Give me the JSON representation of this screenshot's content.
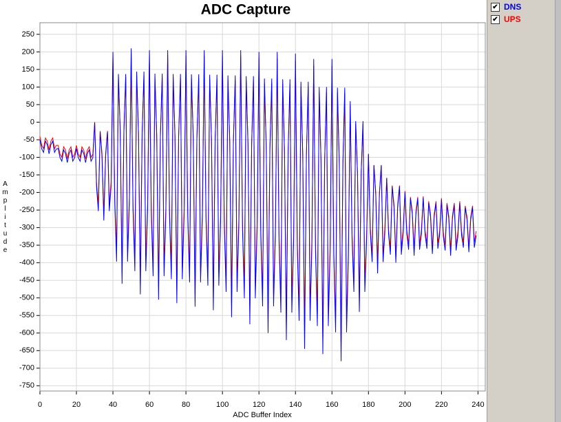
{
  "chart_data": {
    "type": "line",
    "title": "ADC Capture",
    "x_label": "ADC Buffer Index",
    "y_label": "Amplitude",
    "xlim": [
      0,
      244
    ],
    "ylim": [
      -765,
      283
    ],
    "xticks": [
      0,
      20,
      40,
      60,
      80,
      100,
      120,
      140,
      160,
      180,
      200,
      220,
      240
    ],
    "yticks": [
      -750,
      -700,
      -650,
      -600,
      -550,
      -500,
      -450,
      -400,
      -350,
      -300,
      -250,
      -200,
      -150,
      -100,
      -50,
      0,
      50,
      100,
      150,
      200,
      250
    ],
    "grid": true,
    "x": [
      0,
      1,
      2,
      3,
      4,
      5,
      6,
      7,
      8,
      9,
      10,
      11,
      12,
      13,
      14,
      15,
      16,
      17,
      18,
      19,
      20,
      21,
      22,
      23,
      24,
      25,
      26,
      27,
      28,
      29,
      30,
      31,
      32,
      33,
      34,
      35,
      36,
      37,
      38,
      39,
      40,
      41,
      42,
      43,
      44,
      45,
      46,
      47,
      48,
      49,
      50,
      51,
      52,
      53,
      54,
      55,
      56,
      57,
      58,
      59,
      60,
      61,
      62,
      63,
      64,
      65,
      66,
      67,
      68,
      69,
      70,
      71,
      72,
      73,
      74,
      75,
      76,
      77,
      78,
      79,
      80,
      81,
      82,
      83,
      84,
      85,
      86,
      87,
      88,
      89,
      90,
      91,
      92,
      93,
      94,
      95,
      96,
      97,
      98,
      99,
      100,
      101,
      102,
      103,
      104,
      105,
      106,
      107,
      108,
      109,
      110,
      111,
      112,
      113,
      114,
      115,
      116,
      117,
      118,
      119,
      120,
      121,
      122,
      123,
      124,
      125,
      126,
      127,
      128,
      129,
      130,
      131,
      132,
      133,
      134,
      135,
      136,
      137,
      138,
      139,
      140,
      141,
      142,
      143,
      144,
      145,
      146,
      147,
      148,
      149,
      150,
      151,
      152,
      153,
      154,
      155,
      156,
      157,
      158,
      159,
      160,
      161,
      162,
      163,
      164,
      165,
      166,
      167,
      168,
      169,
      170,
      171,
      172,
      173,
      174,
      175,
      176,
      177,
      178,
      179,
      180,
      181,
      182,
      183,
      184,
      185,
      186,
      187,
      188,
      189,
      190,
      191,
      192,
      193,
      194,
      195,
      196,
      197,
      198,
      199,
      200,
      201,
      202,
      203,
      204,
      205,
      206,
      207,
      208,
      209,
      210,
      211,
      212,
      213,
      214,
      215,
      216,
      217,
      218,
      219,
      220,
      221,
      222,
      223,
      224,
      225,
      226,
      227,
      228,
      229,
      230,
      231,
      232,
      233,
      234,
      235,
      236,
      237,
      238,
      239
    ],
    "series": [
      {
        "name": "DNS",
        "color": "#0000ff",
        "values": [
          -50,
          -76,
          -86,
          -54,
          -64,
          -90,
          -64,
          -54,
          -86,
          -76,
          -75,
          -101,
          -111,
          -79,
          -89,
          -115,
          -89,
          -79,
          -111,
          -101,
          -75,
          -101,
          -111,
          -79,
          -89,
          -115,
          -89,
          -79,
          -111,
          -101,
          0,
          -183,
          -253,
          -27,
          -97,
          -280,
          -97,
          -27,
          -253,
          -183,
          200,
          -232,
          -397,
          137,
          -28,
          -460,
          -28,
          137,
          -397,
          -232,
          210,
          -249,
          -424,
          144,
          -32,
          -490,
          -32,
          144,
          -424,
          -249,
          205,
          -260,
          -438,
          138,
          -40,
          -505,
          -40,
          138,
          -438,
          -260,
          205,
          -267,
          -447,
          137,
          -43,
          -515,
          -43,
          137,
          -447,
          -267,
          205,
          -273,
          -456,
          136,
          -47,
          -525,
          -47,
          136,
          -456,
          -273,
          205,
          -280,
          -465,
          135,
          -50,
          -535,
          -50,
          135,
          -465,
          -280,
          205,
          -293,
          -483,
          133,
          -57,
          -555,
          -57,
          133,
          -483,
          -293,
          205,
          -306,
          -501,
          131,
          -64,
          -575,
          -64,
          131,
          -501,
          -306,
          200,
          -324,
          -524,
          124,
          -76,
          -600,
          -76,
          124,
          -524,
          -324,
          200,
          -337,
          -542,
          122,
          -83,
          -620,
          -83,
          122,
          -542,
          -337,
          195,
          -355,
          -565,
          115,
          -95,
          -645,
          -95,
          115,
          -565,
          -355,
          180,
          -370,
          -580,
          100,
          -110,
          -660,
          -110,
          100,
          -580,
          -370,
          180,
          -383,
          -598,
          98,
          -117,
          -680,
          -117,
          98,
          -598,
          -383,
          60,
          -333,
          -483,
          3,
          -147,
          -540,
          -147,
          3,
          -483,
          -333,
          -90,
          -313,
          -398,
          -122,
          -207,
          -430,
          -207,
          -122,
          -398,
          -313,
          -160,
          -317,
          -377,
          -183,
          -243,
          -400,
          -243,
          -183,
          -377,
          -317,
          -200,
          -318,
          -363,
          -217,
          -262,
          -380,
          -262,
          -217,
          -363,
          -318,
          -215,
          -320,
          -360,
          -230,
          -270,
          -375,
          -270,
          -230,
          -360,
          -320,
          -220,
          -325,
          -365,
          -235,
          -275,
          -380,
          -275,
          -235,
          -365,
          -325,
          -230,
          -322,
          -357,
          -243,
          -278,
          -370,
          -278,
          -243,
          -357,
          -322
        ]
      },
      {
        "name": "UPS",
        "color": "#ff0000",
        "values": [
          -41,
          -66,
          -75,
          -45,
          -54,
          -79,
          -54,
          -45,
          -75,
          -66,
          -66,
          -91,
          -100,
          -70,
          -79,
          -104,
          -79,
          -70,
          -100,
          -91,
          -66,
          -91,
          -100,
          -70,
          -79,
          -104,
          -79,
          -70,
          -100,
          -91,
          0,
          -171,
          -235,
          -25,
          -89,
          -260,
          -89,
          -25,
          -235,
          -171,
          187,
          -216,
          -368,
          128,
          -24,
          -427,
          -24,
          128,
          -368,
          -216,
          196,
          -232,
          -393,
          133,
          -29,
          -456,
          -29,
          133,
          -393,
          -232,
          190,
          -243,
          -406,
          126,
          -37,
          -470,
          -37,
          126,
          -406,
          -243,
          190,
          -249,
          -415,
          125,
          -41,
          -480,
          -41,
          125,
          -415,
          -249,
          189,
          -256,
          -424,
          124,
          -44,
          -489,
          -44,
          124,
          -424,
          -256,
          189,
          -262,
          -433,
          123,
          -48,
          -499,
          -48,
          123,
          -433,
          -262,
          188,
          -275,
          -450,
          120,
          -55,
          -518,
          -55,
          120,
          -450,
          -275,
          188,
          -288,
          -468,
          118,
          -62,
          -538,
          -62,
          118,
          -468,
          -288,
          182,
          -306,
          -490,
          110,
          -74,
          -562,
          -74,
          110,
          -490,
          -306,
          181,
          -319,
          -508,
          108,
          -81,
          -581,
          -81,
          108,
          -508,
          -319,
          176,
          -337,
          -530,
          100,
          -93,
          -606,
          -93,
          100,
          -530,
          -337,
          161,
          -352,
          -545,
          85,
          -108,
          -621,
          -108,
          85,
          -545,
          -352,
          160,
          -365,
          -563,
          83,
          -115,
          -640,
          -115,
          83,
          -563,
          -365,
          49,
          -317,
          -455,
          -5,
          -143,
          -509,
          -143,
          -5,
          -455,
          -317,
          -92,
          -299,
          -378,
          -123,
          -201,
          -408,
          -201,
          -123,
          -378,
          -299,
          -158,
          -305,
          -360,
          -180,
          -235,
          -382,
          -235,
          -180,
          -360,
          -305,
          -196,
          -306,
          -348,
          -213,
          -254,
          -364,
          -254,
          -213,
          -348,
          -306,
          -211,
          -308,
          -345,
          -225,
          -262,
          -359,
          -262,
          -225,
          -345,
          -308,
          -216,
          -313,
          -350,
          -230,
          -267,
          -364,
          -267,
          -230,
          -350,
          -313,
          -225,
          -310,
          -343,
          -238,
          -270,
          -355,
          -270,
          -238,
          -343,
          -310
        ]
      }
    ]
  }
}
